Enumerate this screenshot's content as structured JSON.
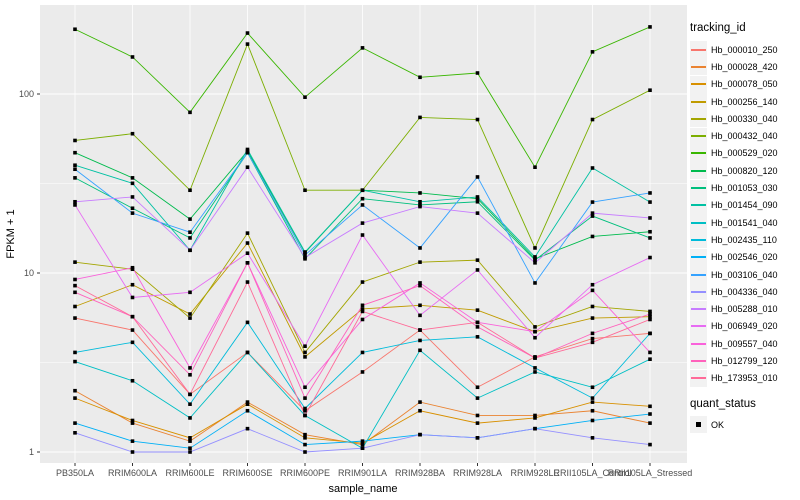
{
  "chart_data": {
    "type": "line",
    "xlabel": "sample_name",
    "ylabel": "FPKM + 1",
    "y_scale": "log10",
    "y_ticks": [
      1,
      10,
      100
    ],
    "y_minor_ticks": [
      3.1623,
      31.623
    ],
    "ylim": [
      0.95,
      300
    ],
    "grid": "white-on-grey",
    "legend_position": "right",
    "legend_title": "tracking_id",
    "shape_legend": {
      "title": "quant_status",
      "items": [
        {
          "label": "OK",
          "shape": "filled-square",
          "color": "#000000"
        }
      ]
    },
    "categories": [
      "PB350LA",
      "RRIM600LA",
      "RRIM600LE",
      "RRIM600SE",
      "RRIM600PE",
      "RRIM901LA",
      "RRIM928BA",
      "RRIM928LA",
      "RRIM928LE",
      "RRII105LA_Control",
      "RRII105LA_Stressed"
    ],
    "series": [
      {
        "name": "Hb_000010_250",
        "color": "#F8766D",
        "values": [
          5.6,
          4.8,
          2.1,
          3.6,
          1.7,
          2.8,
          4.8,
          2.3,
          3.4,
          4.3,
          4.6
        ]
      },
      {
        "name": "Hb_000028_420",
        "color": "#EA8331",
        "values": [
          2.2,
          1.45,
          1.15,
          1.9,
          1.25,
          1.1,
          1.9,
          1.6,
          1.6,
          1.7,
          1.45
        ]
      },
      {
        "name": "Hb_000078_050",
        "color": "#D89000",
        "values": [
          2.0,
          1.5,
          1.2,
          1.85,
          1.2,
          1.12,
          1.7,
          1.45,
          1.55,
          1.9,
          1.8
        ]
      },
      {
        "name": "Hb_000256_140",
        "color": "#C09B00",
        "values": [
          6.5,
          8.6,
          5.9,
          14.7,
          3.4,
          6.3,
          6.6,
          6.2,
          4.7,
          5.6,
          5.7
        ]
      },
      {
        "name": "Hb_000330_040",
        "color": "#A3A500",
        "values": [
          11.5,
          10.5,
          5.6,
          16.7,
          3.6,
          8.9,
          11.5,
          11.8,
          5.0,
          6.5,
          6.1
        ]
      },
      {
        "name": "Hb_000432_040",
        "color": "#7CAE00",
        "values": [
          55,
          60,
          29,
          190,
          29,
          29,
          74,
          72,
          13.8,
          72,
          105
        ]
      },
      {
        "name": "Hb_000529_020",
        "color": "#39B600",
        "values": [
          230,
          161,
          79,
          219,
          96,
          181,
          124,
          131,
          39,
          172,
          237
        ]
      },
      {
        "name": "Hb_000820_120",
        "color": "#00BB4E",
        "values": [
          47,
          34,
          20,
          48,
          13,
          29,
          28,
          26,
          12,
          16,
          17
        ]
      },
      {
        "name": "Hb_001053_030",
        "color": "#00BF7D",
        "values": [
          34,
          23,
          15.7,
          47,
          12,
          26,
          24,
          25,
          11.8,
          20.8,
          15.7
        ]
      },
      {
        "name": "Hb_001454_090",
        "color": "#00C1A3",
        "values": [
          40,
          31.7,
          13.4,
          49,
          13.1,
          29,
          25,
          26.6,
          12.3,
          38.6,
          24.9
        ]
      },
      {
        "name": "Hb_001541_040",
        "color": "#00BFC4",
        "values": [
          3.2,
          2.5,
          1.55,
          3.6,
          1.6,
          1.05,
          3.7,
          2.0,
          2.8,
          2.3,
          3.3
        ]
      },
      {
        "name": "Hb_002435_110",
        "color": "#00BBDA",
        "values": [
          3.6,
          4.1,
          1.85,
          5.3,
          1.75,
          3.6,
          4.2,
          4.4,
          2.95,
          2.0,
          4.6
        ]
      },
      {
        "name": "Hb_002546_020",
        "color": "#00B0F6",
        "values": [
          1.45,
          1.15,
          1.05,
          1.7,
          1.1,
          1.15,
          1.25,
          1.2,
          1.35,
          1.5,
          1.63
        ]
      },
      {
        "name": "Hb_003106_040",
        "color": "#35A2FF",
        "values": [
          38,
          21.6,
          16.9,
          47,
          12.6,
          24,
          13.8,
          34.4,
          8.8,
          24.9,
          28
        ]
      },
      {
        "name": "Hb_004336_040",
        "color": "#9590FF",
        "values": [
          1.28,
          1.0,
          1.0,
          1.35,
          1.0,
          1.05,
          1.25,
          1.2,
          1.35,
          1.2,
          1.1
        ]
      },
      {
        "name": "Hb_005288_010",
        "color": "#C77CFF",
        "values": [
          25,
          26.6,
          13.4,
          39,
          12.2,
          19,
          23.5,
          21.6,
          11.4,
          21.6,
          20.3
        ]
      },
      {
        "name": "Hb_006949_020",
        "color": "#E76BF3",
        "values": [
          24,
          7.3,
          7.8,
          12.9,
          3.9,
          16.3,
          5.8,
          10.4,
          4.35,
          8.6,
          12.2
        ]
      },
      {
        "name": "Hb_009557_040",
        "color": "#FA62DB",
        "values": [
          9.2,
          10.7,
          2.95,
          11.4,
          2.3,
          5.5,
          8.8,
          5.3,
          4.7,
          8.0,
          3.6
        ]
      },
      {
        "name": "Hb_012799_120",
        "color": "#FF62BC",
        "values": [
          7.8,
          5.7,
          2.7,
          11.4,
          2.0,
          6.6,
          8.5,
          5.0,
          3.35,
          4.6,
          5.9
        ]
      },
      {
        "name": "Hb_173953_010",
        "color": "#FF6A98",
        "values": [
          8.5,
          5.7,
          2.1,
          8.9,
          1.6,
          6.1,
          4.8,
          5.3,
          3.35,
          4.1,
          5.5
        ]
      }
    ]
  },
  "styles": {
    "panel_bg": "#EBEBEB",
    "grid_color": "#FFFFFF",
    "tick_text_color": "#4D4D4D",
    "tick_mark_color": "#333333",
    "legend_key_bg": "#F2F2F2",
    "point_color": "#000000"
  }
}
